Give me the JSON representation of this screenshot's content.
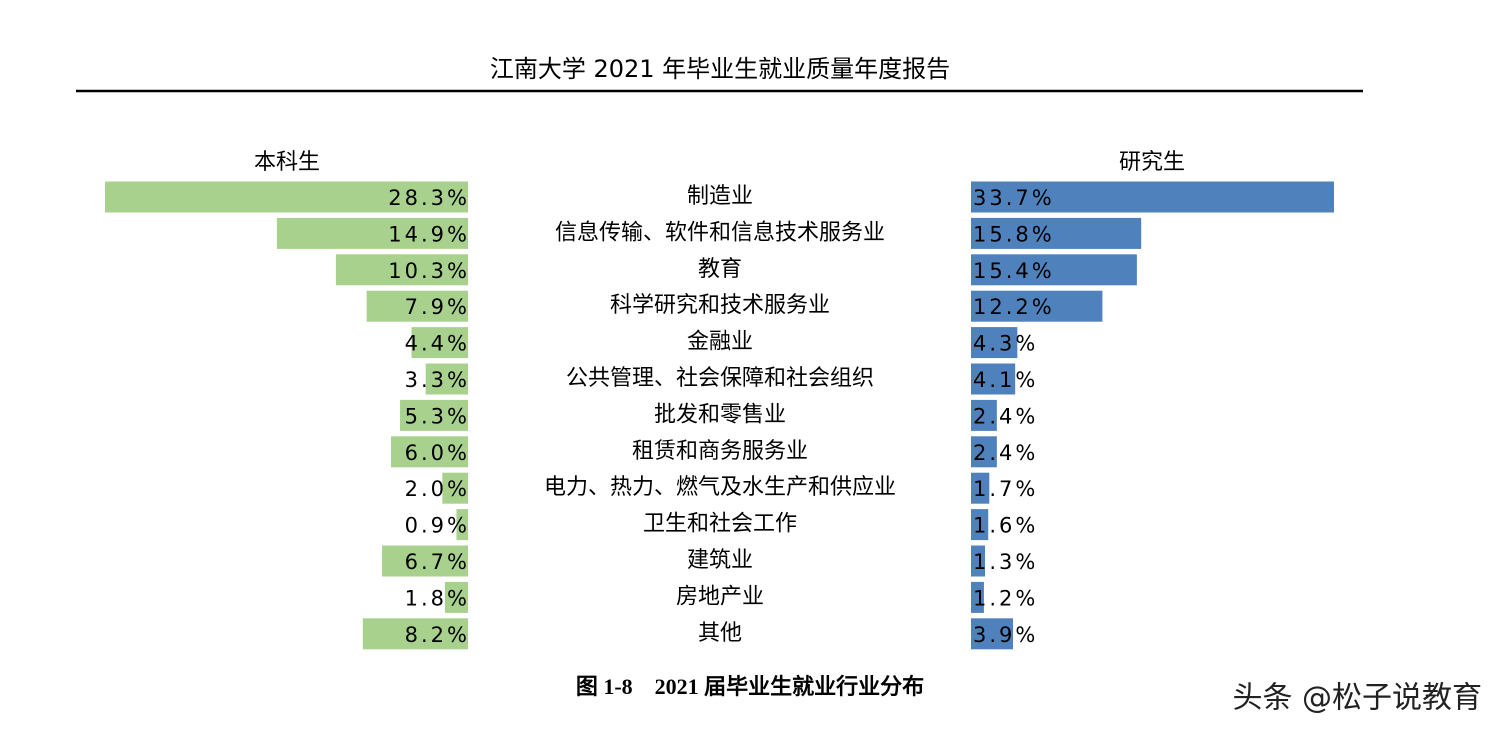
{
  "header": {
    "title": "江南大学 2021 年毕业生就业质量年度报告"
  },
  "chart_data": {
    "type": "bar",
    "categories": [
      "制造业",
      "信息传输、软件和信息技术服务业",
      "教育",
      "科学研究和技术服务业",
      "金融业",
      "公共管理、社会保障和社会组织",
      "批发和零售业",
      "租赁和商务服务业",
      "电力、热力、燃气及水生产和供应业",
      "卫生和社会工作",
      "建筑业",
      "房地产业",
      "其他"
    ],
    "series": [
      {
        "name": "本科生",
        "color": "#a9d18e",
        "values": [
          28.3,
          14.9,
          10.3,
          7.9,
          4.4,
          3.3,
          5.3,
          6.0,
          2.0,
          0.9,
          6.7,
          1.8,
          8.2
        ],
        "value_labels": [
          "28.3%",
          "14.9%",
          "10.3%",
          "7.9%",
          "4.4%",
          "3.3%",
          "5.3%",
          "6.0%",
          "2.0%",
          "0.9%",
          "6.7%",
          "1.8%",
          "8.2%"
        ]
      },
      {
        "name": "研究生",
        "color": "#4f81bd",
        "values": [
          33.7,
          15.8,
          15.4,
          12.2,
          4.3,
          4.1,
          2.4,
          2.4,
          1.7,
          1.6,
          1.3,
          1.2,
          3.9
        ],
        "value_labels": [
          "33.7%",
          "15.8%",
          "15.4%",
          "12.2%",
          "4.3%",
          "4.1%",
          "2.4%",
          "2.4%",
          "1.7%",
          "1.6%",
          "1.3%",
          "1.2%",
          "3.9%"
        ]
      }
    ]
  },
  "caption": "图 1-8　2021 届毕业生就业行业分布",
  "watermark": "头条 @松子说教育"
}
